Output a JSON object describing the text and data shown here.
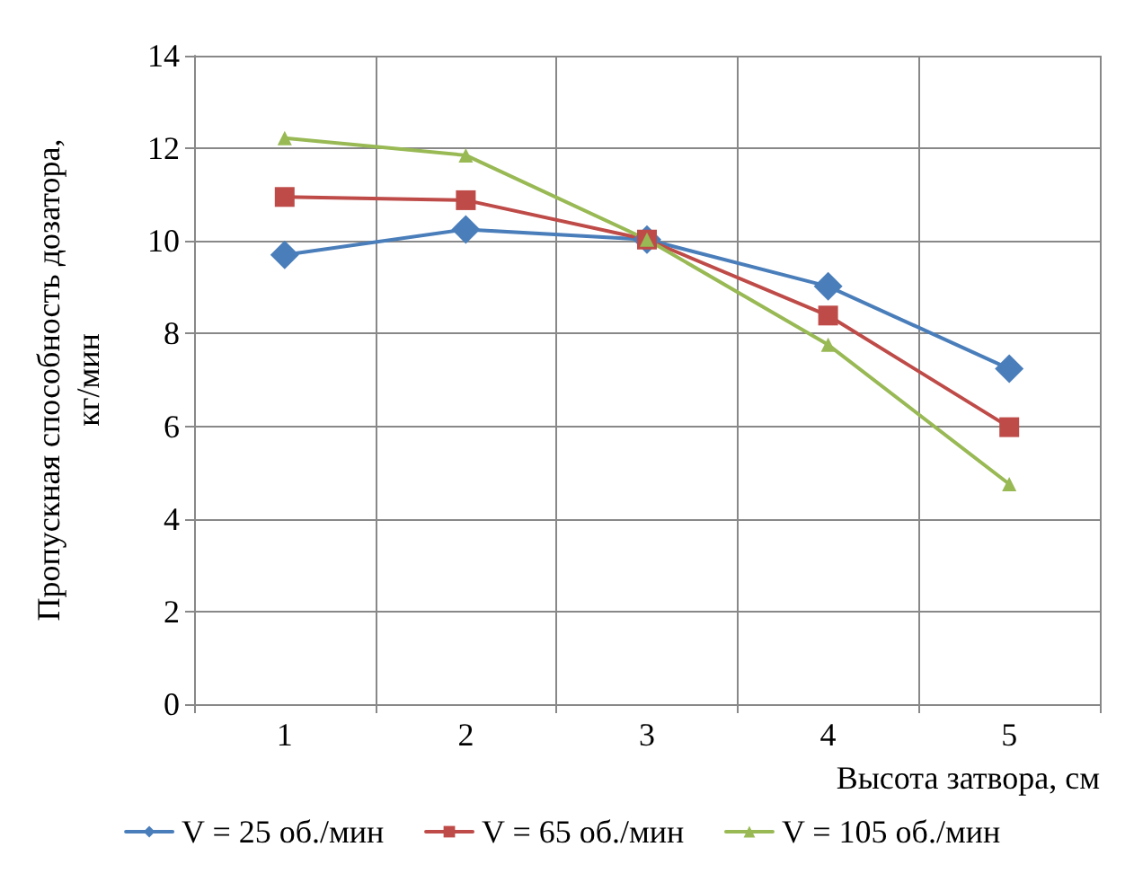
{
  "chart_data": {
    "type": "line",
    "xlabel": "Высота затвора, см",
    "ylabel": "Пропускная способность дозатора,\nкг/мин",
    "categories": [
      "1",
      "2",
      "3",
      "4",
      "5"
    ],
    "series": [
      {
        "name": "V = 25 об./мин",
        "color": "#4a7ebb",
        "marker": "diamond",
        "values": [
          9.7,
          10.25,
          10.03,
          9.02,
          7.24
        ]
      },
      {
        "name": "V = 65 об./мин",
        "color": "#be4b48",
        "marker": "square",
        "values": [
          10.95,
          10.88,
          10.03,
          8.39,
          5.98
        ]
      },
      {
        "name": "V = 105 об./мин",
        "color": "#98b954",
        "marker": "triangle",
        "values": [
          12.22,
          11.85,
          10.03,
          7.76,
          4.75
        ]
      }
    ],
    "ylim": [
      0,
      14
    ],
    "yticks": [
      0,
      2,
      4,
      6,
      8,
      10,
      12,
      14
    ],
    "grid": true,
    "legend": "bottom",
    "line_style": "solid"
  }
}
